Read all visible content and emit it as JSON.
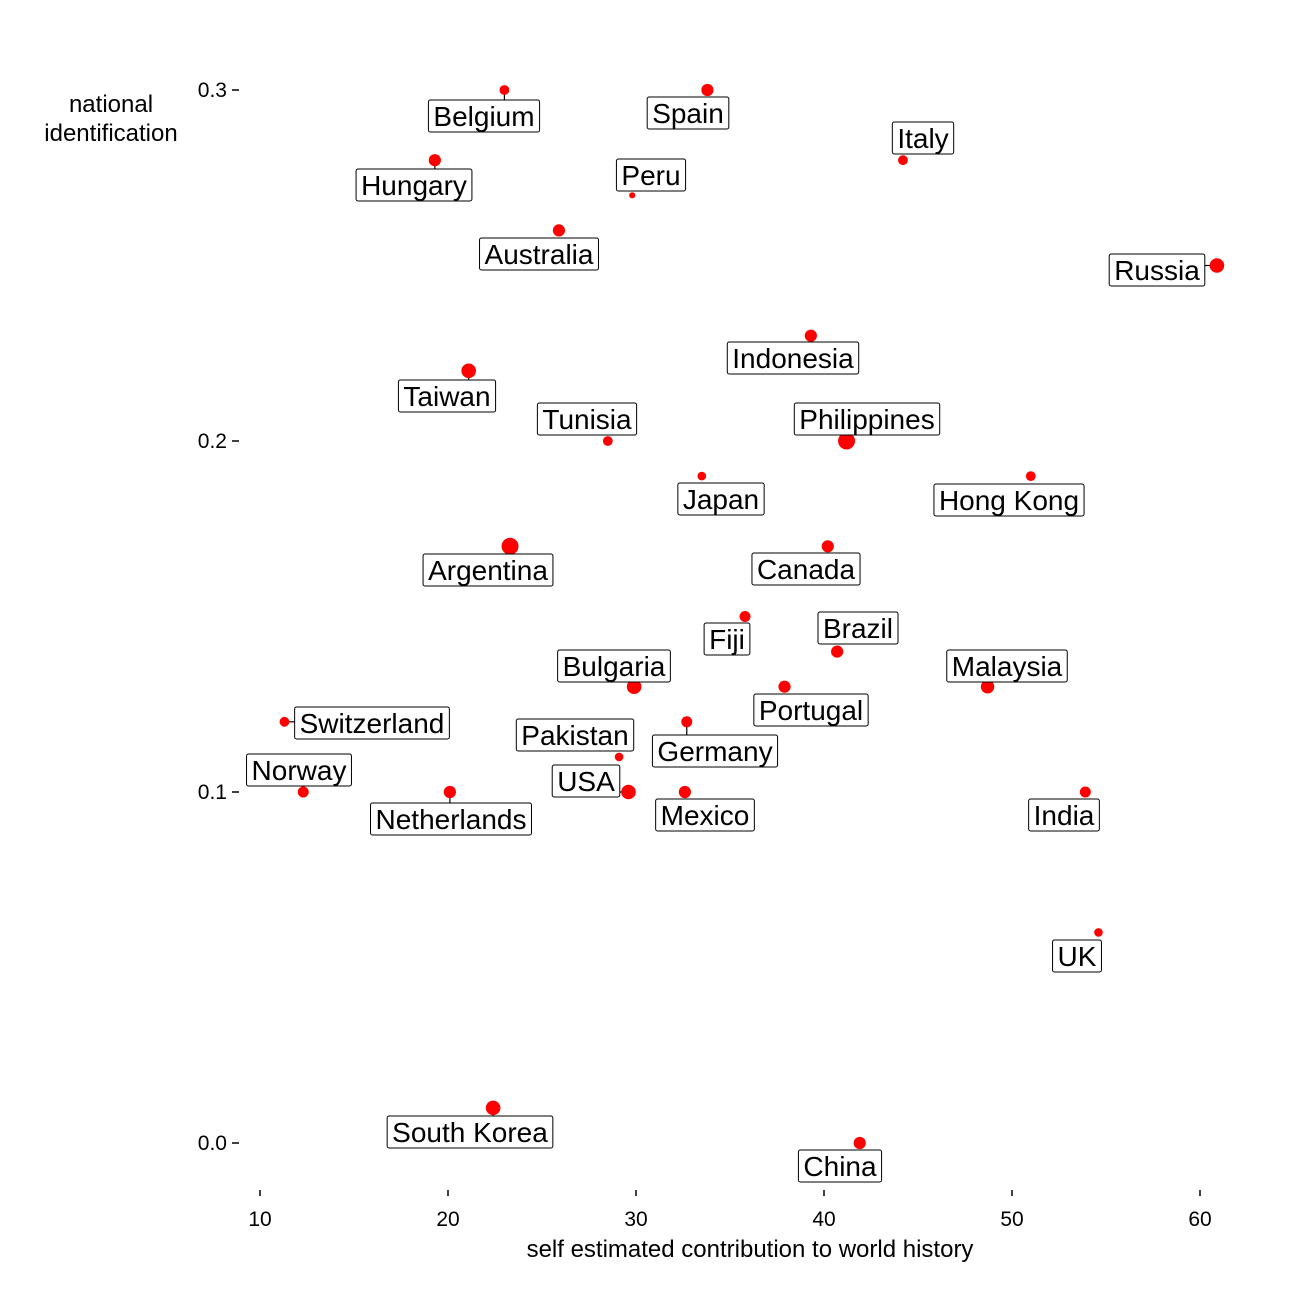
{
  "chart_data": {
    "type": "scatter",
    "title": "",
    "xlabel": "self estimated contribution to world history",
    "ylabel": "national identification",
    "xlim": [
      9,
      63
    ],
    "ylim": [
      -0.015,
      0.313
    ],
    "xticks": [
      10,
      20,
      30,
      40,
      50,
      60
    ],
    "yticks": [
      0.0,
      0.1,
      0.2,
      0.3
    ],
    "xtick_labels": [
      "10",
      "20",
      "30",
      "40",
      "50",
      "60"
    ],
    "ytick_labels": [
      "0.0",
      "0.1",
      "0.2",
      "0.3"
    ],
    "grid": false,
    "point_color": "#ff0000",
    "label_style": "boxed text labels with leader lines",
    "points": [
      {
        "label": "Belgium",
        "x": 23.0,
        "y": 0.3,
        "size": 2
      },
      {
        "label": "Spain",
        "x": 33.8,
        "y": 0.3,
        "size": 3
      },
      {
        "label": "Italy",
        "x": 44.2,
        "y": 0.28,
        "size": 2
      },
      {
        "label": "Hungary",
        "x": 19.3,
        "y": 0.28,
        "size": 3
      },
      {
        "label": "Peru",
        "x": 29.8,
        "y": 0.27,
        "size": 0.5
      },
      {
        "label": "Australia",
        "x": 25.9,
        "y": 0.26,
        "size": 3
      },
      {
        "label": "Russia",
        "x": 60.9,
        "y": 0.25,
        "size": 4
      },
      {
        "label": "Indonesia",
        "x": 39.3,
        "y": 0.23,
        "size": 3
      },
      {
        "label": "Taiwan",
        "x": 21.1,
        "y": 0.22,
        "size": 4
      },
      {
        "label": "Tunisia",
        "x": 28.5,
        "y": 0.2,
        "size": 2
      },
      {
        "label": "Philippines",
        "x": 41.2,
        "y": 0.2,
        "size": 5
      },
      {
        "label": "Japan",
        "x": 33.5,
        "y": 0.19,
        "size": 1.5
      },
      {
        "label": "Hong Kong",
        "x": 51.0,
        "y": 0.19,
        "size": 2
      },
      {
        "label": "Argentina",
        "x": 23.3,
        "y": 0.17,
        "size": 5
      },
      {
        "label": "Canada",
        "x": 40.2,
        "y": 0.17,
        "size": 3
      },
      {
        "label": "Fiji",
        "x": 35.8,
        "y": 0.15,
        "size": 2.5
      },
      {
        "label": "Brazil",
        "x": 40.7,
        "y": 0.14,
        "size": 3
      },
      {
        "label": "Bulgaria",
        "x": 29.9,
        "y": 0.13,
        "size": 4
      },
      {
        "label": "Portugal",
        "x": 37.9,
        "y": 0.13,
        "size": 3
      },
      {
        "label": "Malaysia",
        "x": 48.7,
        "y": 0.13,
        "size": 3.5
      },
      {
        "label": "Switzerland",
        "x": 11.3,
        "y": 0.12,
        "size": 2
      },
      {
        "label": "Germany",
        "x": 32.7,
        "y": 0.12,
        "size": 2.5
      },
      {
        "label": "Pakistan",
        "x": 29.1,
        "y": 0.11,
        "size": 1.5
      },
      {
        "label": "Norway",
        "x": 12.3,
        "y": 0.1,
        "size": 2.5
      },
      {
        "label": "Netherlands",
        "x": 20.1,
        "y": 0.1,
        "size": 3
      },
      {
        "label": "USA",
        "x": 29.6,
        "y": 0.1,
        "size": 4
      },
      {
        "label": "Mexico",
        "x": 32.6,
        "y": 0.1,
        "size": 3
      },
      {
        "label": "India",
        "x": 53.9,
        "y": 0.1,
        "size": 2.5
      },
      {
        "label": "UK",
        "x": 54.6,
        "y": 0.06,
        "size": 1.5
      },
      {
        "label": "South Korea",
        "x": 22.4,
        "y": 0.01,
        "size": 4
      },
      {
        "label": "China",
        "x": 41.9,
        "y": 0.0,
        "size": 3
      }
    ]
  }
}
